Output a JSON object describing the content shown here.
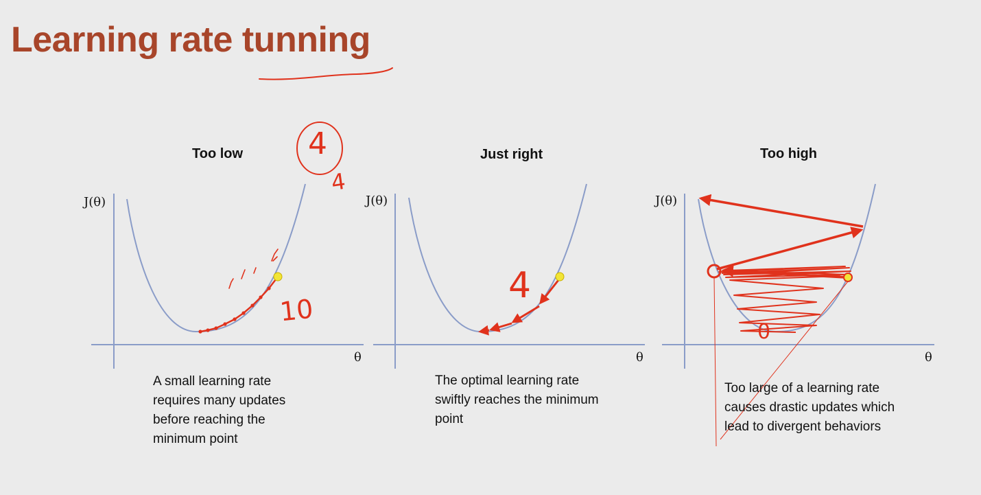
{
  "slide": {
    "title": "Learning rate tunning"
  },
  "panels": [
    {
      "title": "Too low",
      "y_label": "J(θ)",
      "x_label": "θ",
      "caption": "A small learning rate requires many updates before reaching the minimum point"
    },
    {
      "title": "Just right",
      "y_label": "J(θ)",
      "x_label": "θ",
      "caption": "The optimal learning rate swiftly reaches the minimum point"
    },
    {
      "title": "Too high",
      "y_label": "J(θ)",
      "x_label": "θ",
      "caption": "Too large of a learning rate causes drastic updates which lead to divergent behaviors"
    }
  ],
  "annotations": {
    "circled_number": "4",
    "small_number": "4",
    "too_low_count": "10",
    "just_right_count": "4",
    "too_high_count": "0"
  },
  "colors": {
    "title": "#a8452a",
    "curve": "#8a9cc8",
    "axis": "#8a9cc8",
    "ink_red": "#e0321c",
    "start_point": "#f2e536"
  }
}
